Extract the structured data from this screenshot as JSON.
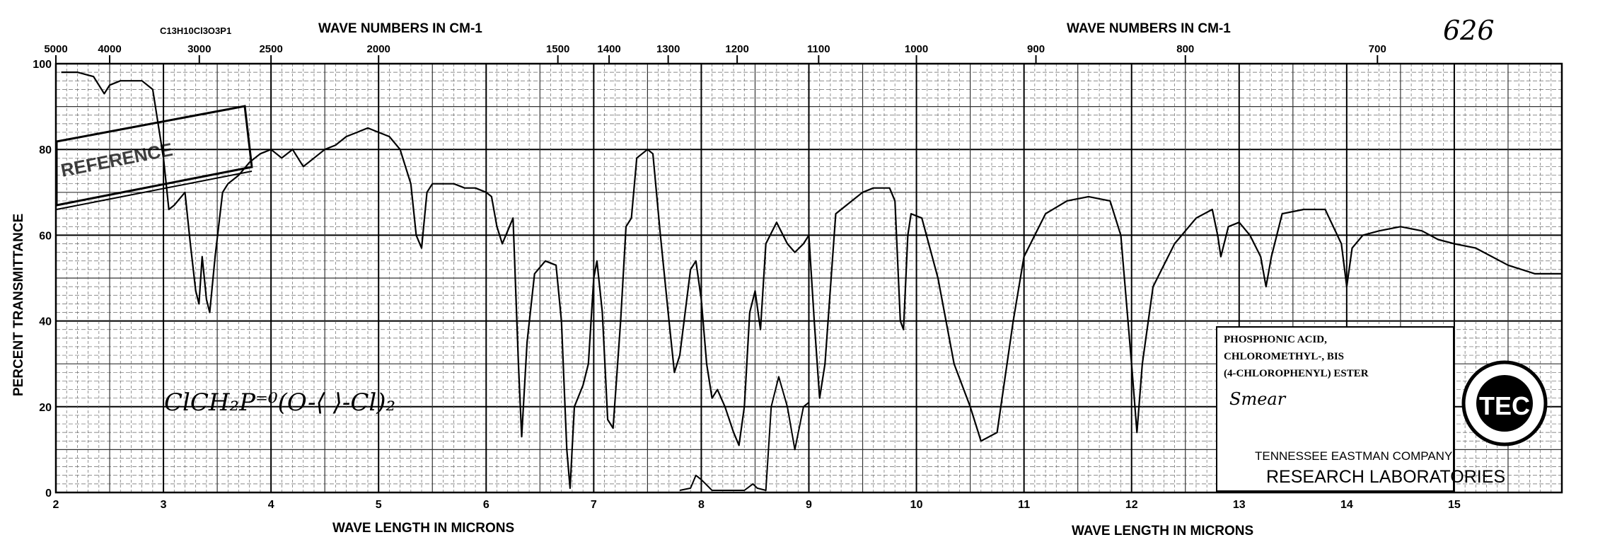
{
  "chart_data": {
    "type": "line",
    "ylabel": "PERCENT TRANSMITTANCE",
    "xlabel_bottom_left": "WAVE LENGTH IN MICRONS",
    "xlabel_bottom_right": "WAVE LENGTH IN MICRONS",
    "top_label_left": "WAVE NUMBERS IN CM-1",
    "top_label_right": "WAVE NUMBERS IN CM-1",
    "formula_label": "C13H10Cl3O3P1",
    "handwritten_number": "626",
    "xlim": [
      2,
      16
    ],
    "ylim": [
      0,
      100
    ],
    "grid": true,
    "y_ticks": [
      "0",
      "20",
      "40",
      "60",
      "80",
      "100"
    ],
    "x_ticks_microns": [
      "2",
      "3",
      "4",
      "5",
      "6",
      "7",
      "8",
      "9",
      "10",
      "11",
      "12",
      "13",
      "14",
      "15"
    ],
    "top_ticks_wavenumbers": [
      "5000",
      "4000",
      "3000",
      "2500",
      "2000",
      "1500",
      "1400",
      "1300",
      "1200",
      "1100",
      "1000",
      "900",
      "800",
      "700"
    ],
    "series": [
      {
        "values_note": "",
        "points": [
          [
            2.05,
            98
          ],
          [
            2.2,
            98
          ],
          [
            2.35,
            97
          ],
          [
            2.45,
            93
          ],
          [
            2.5,
            95
          ],
          [
            2.6,
            96
          ],
          [
            2.8,
            96
          ],
          [
            2.9,
            94
          ],
          [
            3.0,
            78
          ],
          [
            3.05,
            66
          ],
          [
            3.1,
            67
          ],
          [
            3.2,
            70
          ],
          [
            3.25,
            58
          ],
          [
            3.3,
            47
          ],
          [
            3.33,
            44
          ],
          [
            3.36,
            55
          ],
          [
            3.4,
            45
          ],
          [
            3.43,
            42
          ],
          [
            3.48,
            55
          ],
          [
            3.55,
            70
          ],
          [
            3.6,
            72
          ],
          [
            3.7,
            74
          ],
          [
            3.8,
            77
          ],
          [
            3.9,
            79
          ],
          [
            4.0,
            80
          ],
          [
            4.1,
            78
          ],
          [
            4.2,
            80
          ],
          [
            4.3,
            76
          ],
          [
            4.4,
            78
          ],
          [
            4.5,
            80
          ],
          [
            4.6,
            81
          ],
          [
            4.7,
            83
          ],
          [
            4.8,
            84
          ],
          [
            4.9,
            85
          ],
          [
            5.0,
            84
          ],
          [
            5.1,
            83
          ],
          [
            5.2,
            80
          ],
          [
            5.3,
            72
          ],
          [
            5.35,
            60
          ],
          [
            5.4,
            57
          ],
          [
            5.45,
            70
          ],
          [
            5.5,
            72
          ],
          [
            5.7,
            72
          ],
          [
            5.8,
            71
          ],
          [
            5.9,
            71
          ],
          [
            6.0,
            70
          ],
          [
            6.05,
            69
          ],
          [
            6.1,
            62
          ],
          [
            6.15,
            58
          ],
          [
            6.2,
            61
          ],
          [
            6.25,
            64
          ],
          [
            6.3,
            30
          ],
          [
            6.33,
            13
          ],
          [
            6.38,
            35
          ],
          [
            6.45,
            51
          ],
          [
            6.55,
            54
          ],
          [
            6.65,
            53
          ],
          [
            6.7,
            40
          ],
          [
            6.75,
            10
          ],
          [
            6.78,
            1
          ],
          [
            6.82,
            20
          ],
          [
            6.9,
            25
          ],
          [
            6.95,
            30
          ],
          [
            7.0,
            50
          ],
          [
            7.03,
            54
          ],
          [
            7.08,
            42
          ],
          [
            7.13,
            17
          ],
          [
            7.18,
            15
          ],
          [
            7.25,
            40
          ],
          [
            7.3,
            62
          ],
          [
            7.35,
            64
          ],
          [
            7.4,
            78
          ],
          [
            7.5,
            80
          ],
          [
            7.55,
            79
          ],
          [
            7.62,
            60
          ],
          [
            7.7,
            40
          ],
          [
            7.75,
            28
          ],
          [
            7.8,
            32
          ],
          [
            7.9,
            52
          ],
          [
            7.95,
            54
          ],
          [
            8.0,
            45
          ],
          [
            8.05,
            30
          ],
          [
            8.1,
            22
          ],
          [
            8.15,
            24
          ],
          [
            8.22,
            20
          ],
          [
            8.3,
            14
          ],
          [
            8.35,
            11
          ],
          [
            8.4,
            20
          ],
          [
            8.45,
            42
          ],
          [
            8.5,
            47
          ],
          [
            8.55,
            38
          ],
          [
            8.6,
            58
          ],
          [
            8.7,
            63
          ],
          [
            8.8,
            58
          ],
          [
            8.87,
            56
          ],
          [
            8.95,
            58
          ],
          [
            9.0,
            60
          ],
          [
            9.05,
            40
          ],
          [
            9.1,
            22
          ],
          [
            9.15,
            30
          ],
          [
            9.25,
            65
          ],
          [
            9.4,
            68
          ],
          [
            9.5,
            70
          ],
          [
            9.6,
            71
          ],
          [
            9.75,
            71
          ],
          [
            9.8,
            68
          ],
          [
            9.85,
            40
          ],
          [
            9.88,
            38
          ],
          [
            9.92,
            60
          ],
          [
            9.95,
            65
          ],
          [
            10.05,
            64
          ],
          [
            10.2,
            50
          ],
          [
            10.35,
            30
          ],
          [
            10.5,
            20
          ],
          [
            10.6,
            12
          ],
          [
            10.75,
            14
          ],
          [
            10.9,
            40
          ],
          [
            11.0,
            55
          ],
          [
            11.2,
            65
          ],
          [
            11.4,
            68
          ],
          [
            11.6,
            69
          ],
          [
            11.8,
            68
          ],
          [
            11.9,
            60
          ],
          [
            12.0,
            30
          ],
          [
            12.05,
            14
          ],
          [
            12.1,
            30
          ],
          [
            12.2,
            48
          ],
          [
            12.4,
            58
          ],
          [
            12.6,
            64
          ],
          [
            12.75,
            66
          ],
          [
            12.8,
            60
          ],
          [
            12.83,
            55
          ],
          [
            12.9,
            62
          ],
          [
            13.0,
            63
          ],
          [
            13.1,
            60
          ],
          [
            13.2,
            55
          ],
          [
            13.25,
            48
          ],
          [
            13.3,
            55
          ],
          [
            13.4,
            65
          ],
          [
            13.6,
            66
          ],
          [
            13.8,
            66
          ],
          [
            13.95,
            58
          ],
          [
            14.0,
            48
          ],
          [
            14.05,
            57
          ],
          [
            14.15,
            60
          ],
          [
            14.3,
            61
          ],
          [
            14.5,
            62
          ],
          [
            14.7,
            61
          ],
          [
            14.85,
            59
          ],
          [
            15.0,
            58
          ],
          [
            15.2,
            57
          ],
          [
            15.5,
            53
          ],
          [
            15.75,
            51
          ],
          [
            16.0,
            51
          ]
        ]
      }
    ],
    "lower_trace_note": "",
    "lower_trace": [
      [
        7.8,
        0.5
      ],
      [
        7.9,
        1
      ],
      [
        7.95,
        4
      ],
      [
        8.0,
        3
      ],
      [
        8.1,
        0.5
      ],
      [
        8.4,
        0.5
      ],
      [
        8.48,
        2
      ],
      [
        8.52,
        1
      ],
      [
        8.6,
        0.5
      ],
      [
        8.65,
        20
      ],
      [
        8.72,
        27
      ],
      [
        8.8,
        20
      ],
      [
        8.87,
        10
      ],
      [
        8.95,
        20
      ],
      [
        9.0,
        21
      ]
    ]
  },
  "label_box": {
    "compound_line1": "PHOSPHONIC ACID,",
    "compound_line2": "CHLOROMETHYL-, BIS",
    "compound_line3": "(4-CHLOROPHENYL) ESTER",
    "sample_note": "Smear",
    "company": "TENNESSEE EASTMAN COMPANY",
    "lab": "RESEARCH LABORATORIES"
  },
  "handwritten_structure": "ClCH₂P⁼⁰(O-⟨ ⟩-Cl)₂",
  "stamp_text": "REFERENCE",
  "logo_text": "TEC",
  "colors": {
    "ink": "#000000",
    "paper": "#ffffff",
    "grid": "#444444"
  }
}
